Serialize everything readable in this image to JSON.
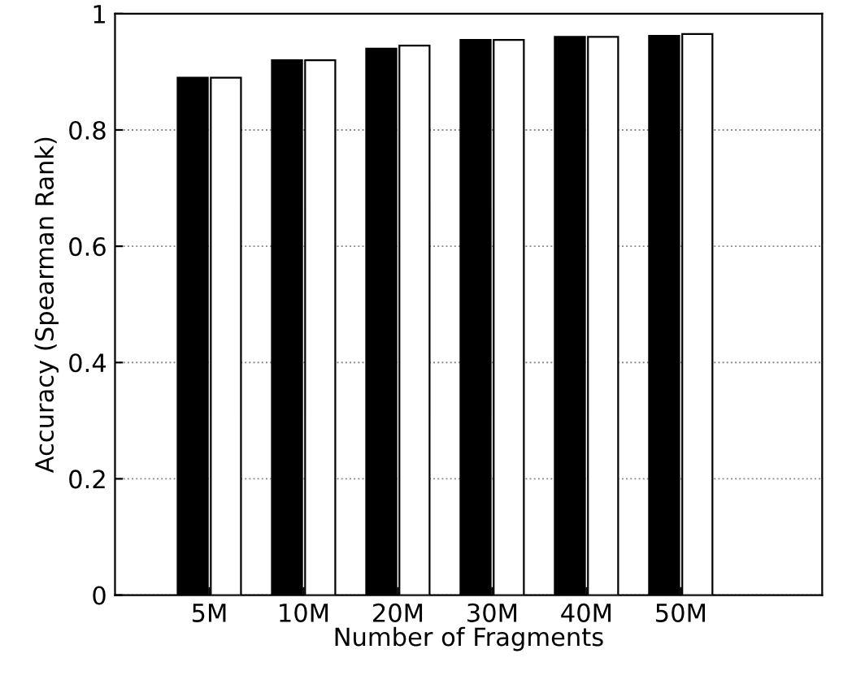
{
  "chart_data": {
    "type": "bar",
    "xlabel": "Number of Fragments",
    "ylabel": "Accuracy (Spearman Rank)",
    "categories": [
      "5M",
      "10M",
      "20M",
      "30M",
      "40M",
      "50M"
    ],
    "series": [
      {
        "color": "#000000",
        "values": [
          0.89,
          0.92,
          0.94,
          0.955,
          0.96,
          0.962
        ]
      },
      {
        "color": "#ffffff",
        "values": [
          0.89,
          0.92,
          0.945,
          0.955,
          0.96,
          0.965
        ]
      }
    ],
    "ylim": [
      0,
      1
    ],
    "yticks": [
      0,
      0.2,
      0.4,
      0.6,
      0.8,
      1
    ],
    "grid": "y",
    "line_style": "dotted"
  }
}
